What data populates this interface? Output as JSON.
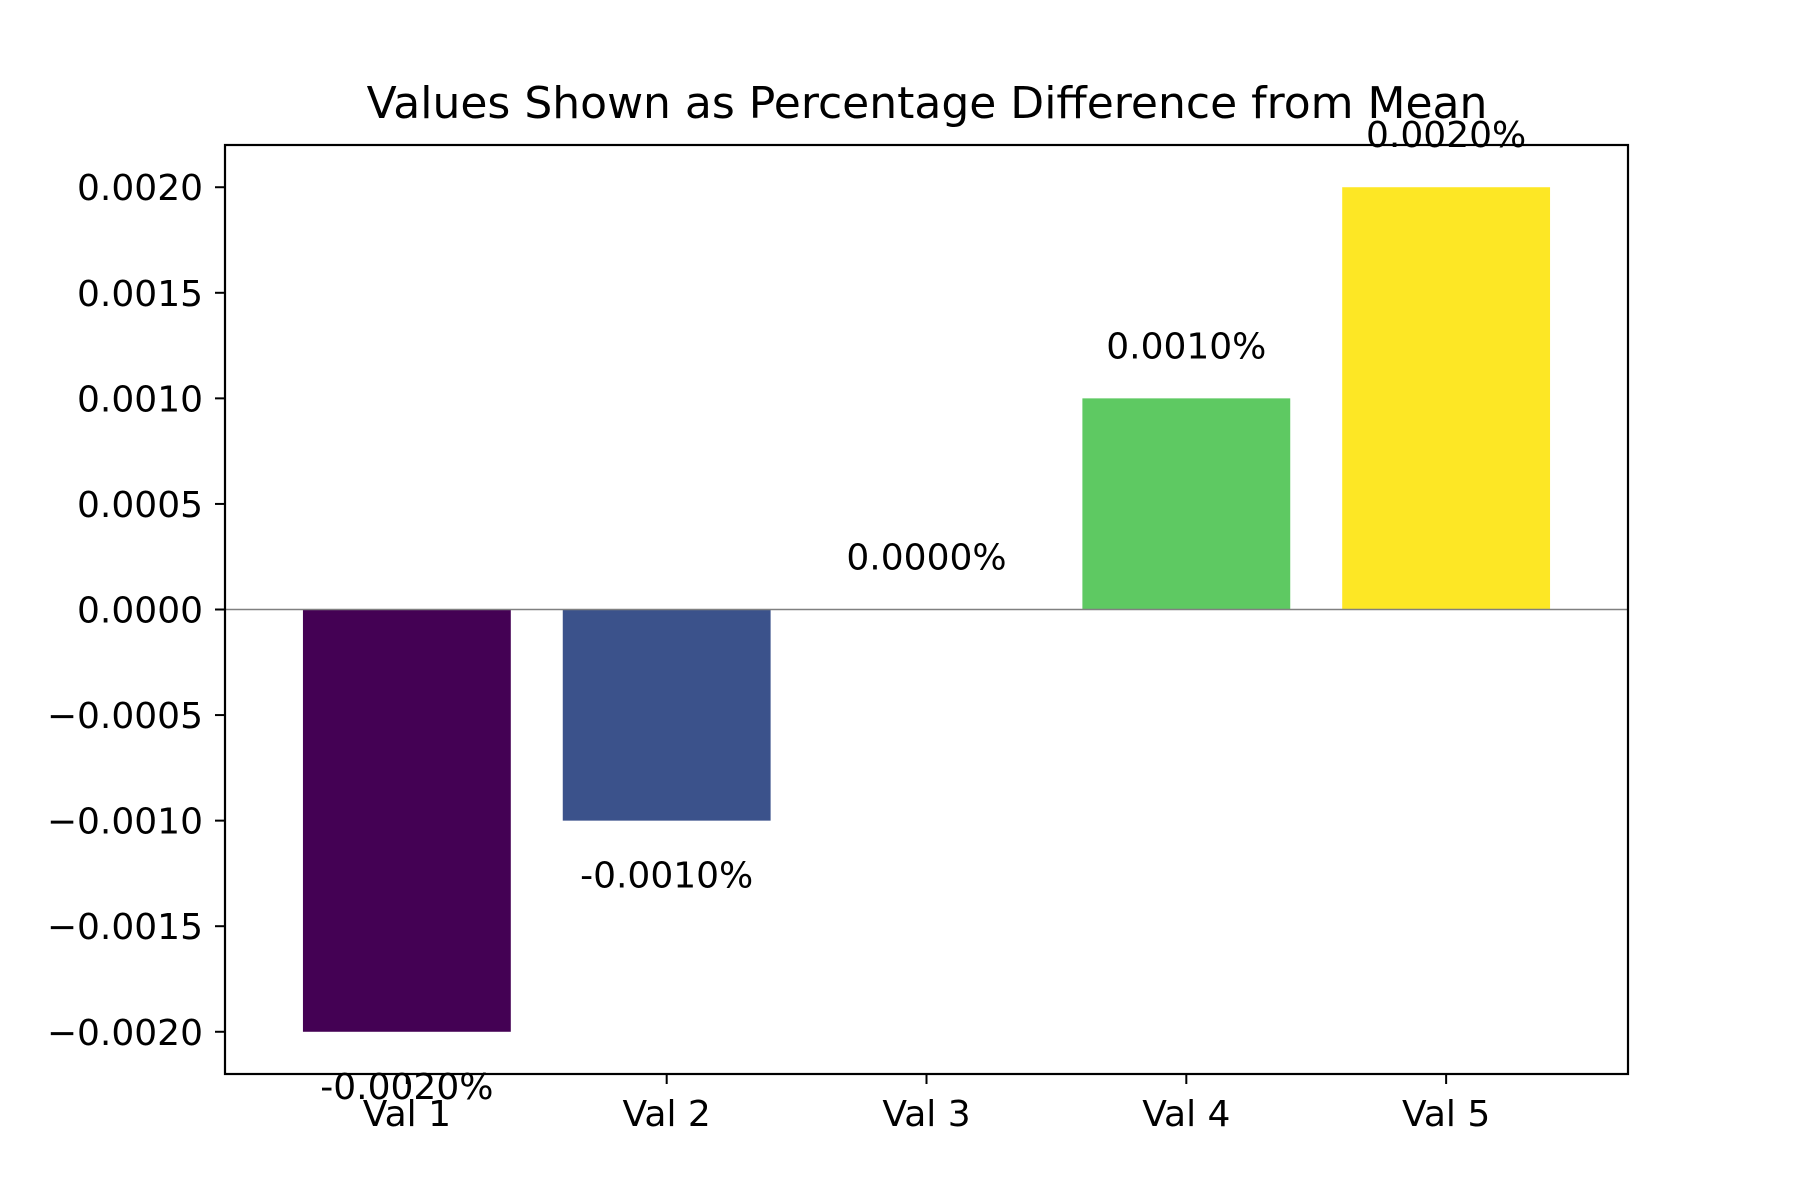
{
  "chart_data": {
    "type": "bar",
    "title": "Values Shown as Percentage Difference from Mean",
    "xlabel": "",
    "ylabel": "",
    "categories": [
      "Val 1",
      "Val 2",
      "Val 3",
      "Val 4",
      "Val 5"
    ],
    "values": [
      -0.002,
      -0.001,
      0.0,
      0.001,
      0.002
    ],
    "data_labels": [
      "-0.0020%",
      "-0.0010%",
      "0.0000%",
      "0.0010%",
      "0.0020%"
    ],
    "colors": [
      "#440154",
      "#3b528b",
      "#21918c",
      "#5ec962",
      "#fde725"
    ],
    "ylim": [
      -0.0022,
      0.0022
    ],
    "yticks": [
      -0.002,
      -0.0015,
      -0.001,
      -0.0005,
      0.0,
      0.0005,
      0.001,
      0.0015,
      0.002
    ],
    "ytick_labels": [
      "−0.0020",
      "−0.0015",
      "−0.0010",
      "−0.0005",
      "0.0000",
      "0.0005",
      "0.0010",
      "0.0015",
      "0.0020"
    ],
    "zero_line_color": "#808080",
    "grid": false,
    "legend": "none"
  }
}
